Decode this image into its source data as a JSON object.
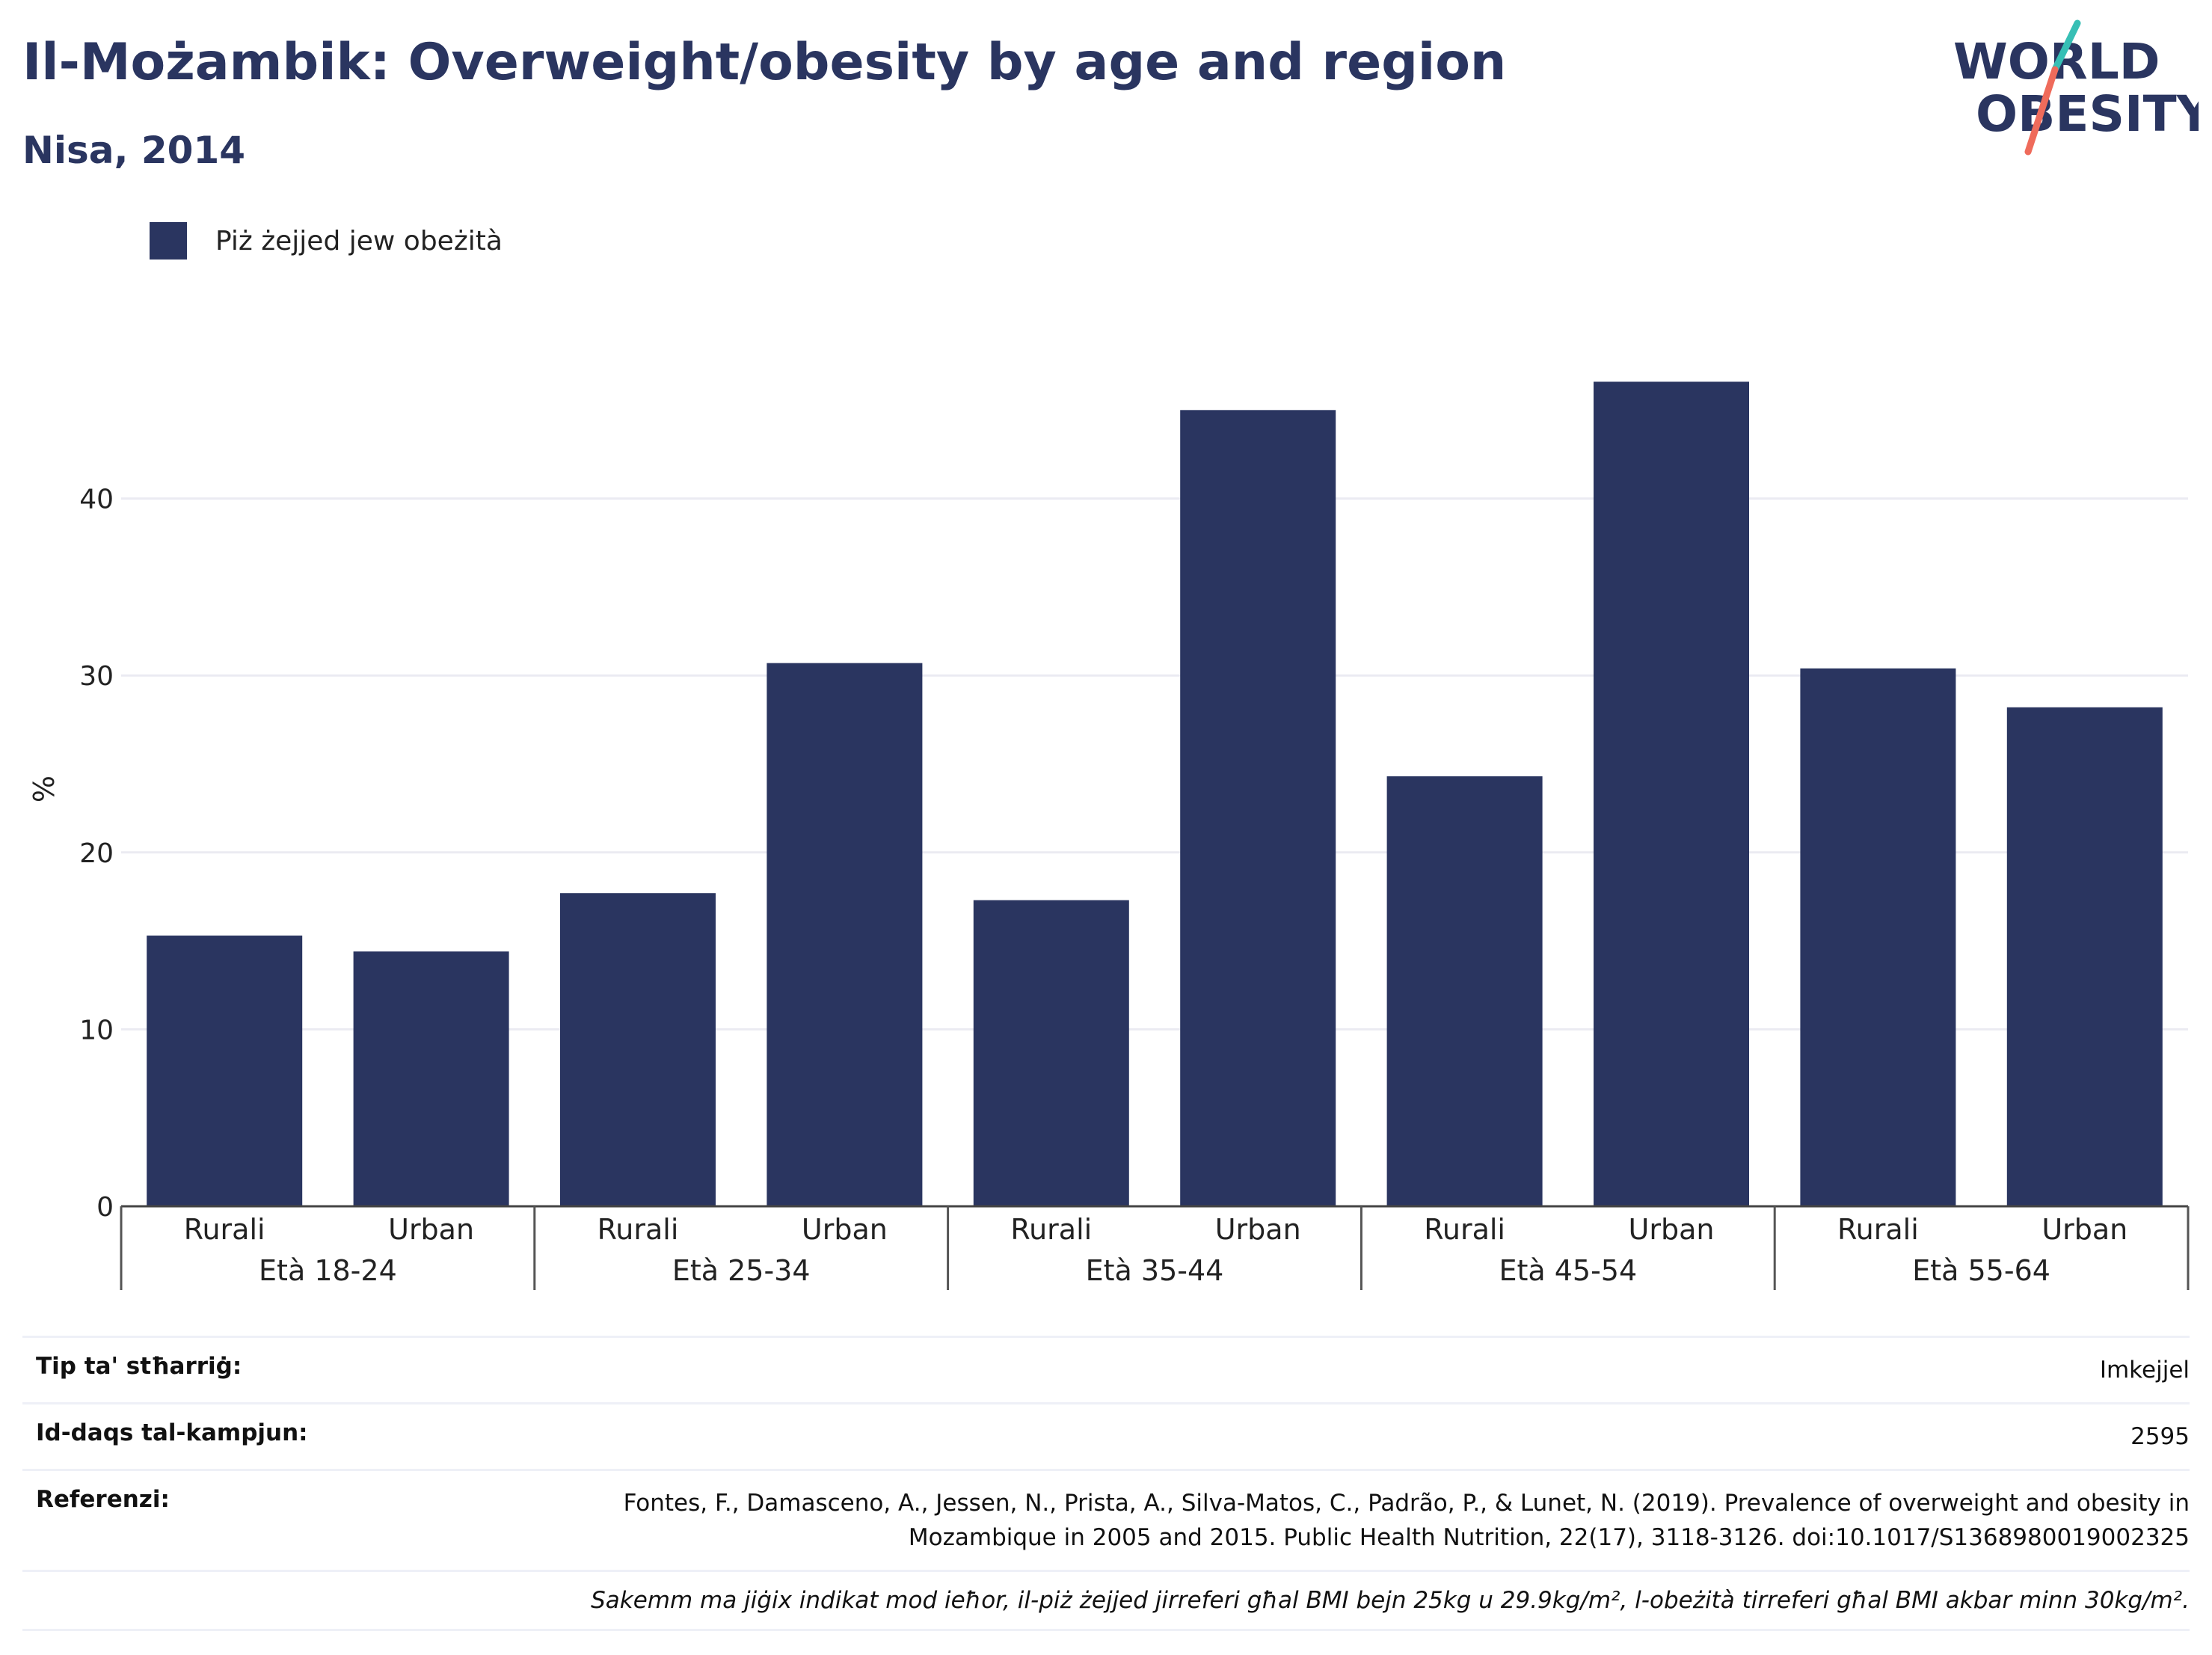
{
  "header": {
    "title": "Il-Możambik: Overweight/obesity by age and region",
    "subtitle": "Nisa, 2014"
  },
  "logo": {
    "line1": "WORLD",
    "line2": "OBESITY"
  },
  "legend": {
    "label": "Piż żejjed jew obeżità"
  },
  "colors": {
    "bar": "#2a3560",
    "grid": "#ebebf2",
    "accent_teal": "#37bfb5",
    "accent_coral": "#ef6b5b"
  },
  "chart_data": {
    "type": "bar",
    "ylabel": "%",
    "ylim": [
      0,
      50
    ],
    "yticks": [
      0,
      10,
      20,
      30,
      40
    ],
    "grid": true,
    "legend_position": "top-left",
    "groups": [
      {
        "label": "Età 18-24",
        "bars": [
          {
            "category": "Rurali",
            "value": 15.3
          },
          {
            "category": "Urban",
            "value": 14.4
          }
        ]
      },
      {
        "label": "Età 25-34",
        "bars": [
          {
            "category": "Rurali",
            "value": 17.7
          },
          {
            "category": "Urban",
            "value": 30.7
          }
        ]
      },
      {
        "label": "Età 35-44",
        "bars": [
          {
            "category": "Rurali",
            "value": 17.3
          },
          {
            "category": "Urban",
            "value": 45.0
          }
        ]
      },
      {
        "label": "Età 45-54",
        "bars": [
          {
            "category": "Rurali",
            "value": 24.3
          },
          {
            "category": "Urban",
            "value": 46.6
          }
        ]
      },
      {
        "label": "Età 55-64",
        "bars": [
          {
            "category": "Rurali",
            "value": 30.4
          },
          {
            "category": "Urban",
            "value": 28.2
          }
        ]
      }
    ],
    "series": [
      {
        "name": "Piż żejjed jew obeżità"
      }
    ]
  },
  "info": {
    "survey_type_label": "Tip ta' stħarriġ:",
    "survey_type_value": "Imkejjel",
    "sample_size_label": "Id-daqs tal-kampjun:",
    "sample_size_value": "2595",
    "references_label": "Referenzi:",
    "references_line1": "Fontes, F., Damasceno, A., Jessen, N., Prista, A., Silva-Matos, C., Padrão, P., & Lunet, N. (2019). Prevalence of overweight and obesity in",
    "references_line2": "Mozambique in 2005 and 2015. Public Health Nutrition, 22(17), 3118-3126. doi:10.1017/S1368980019002325",
    "note": "Sakemm ma jiġix indikat mod ieħor, il-piż żejjed jirreferi għal BMI bejn 25kg u 29.9kg/m², l-obeżità tirreferi għal BMI akbar minn 30kg/m²."
  }
}
